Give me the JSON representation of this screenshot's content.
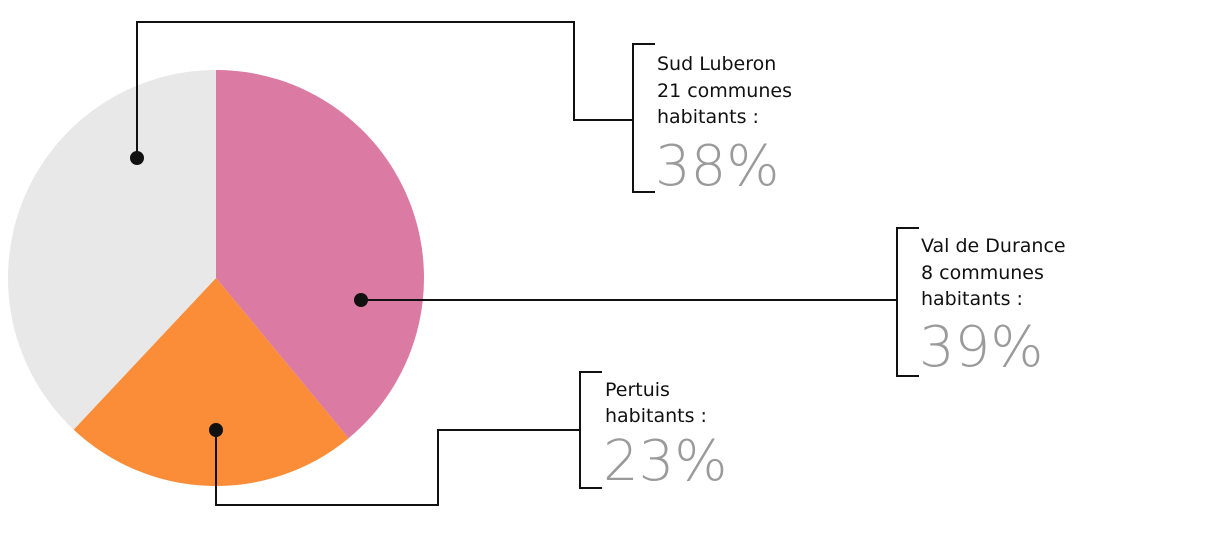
{
  "chart_data": {
    "type": "pie",
    "slices": [
      {
        "name": "Val de Durance",
        "detail": "8 communes",
        "unit_label": "habitants :",
        "value": 39,
        "value_label": "39%",
        "color": "#db7aa3"
      },
      {
        "name": "Pertuis",
        "unit_label": "habitants :",
        "value": 23,
        "value_label": "23%",
        "color": "#fb8c38"
      },
      {
        "name": "Sud Luberon",
        "detail": "21 communes",
        "unit_label": "habitants :",
        "value": 38,
        "value_label": "38%",
        "color": "#e8e8e8"
      }
    ]
  }
}
